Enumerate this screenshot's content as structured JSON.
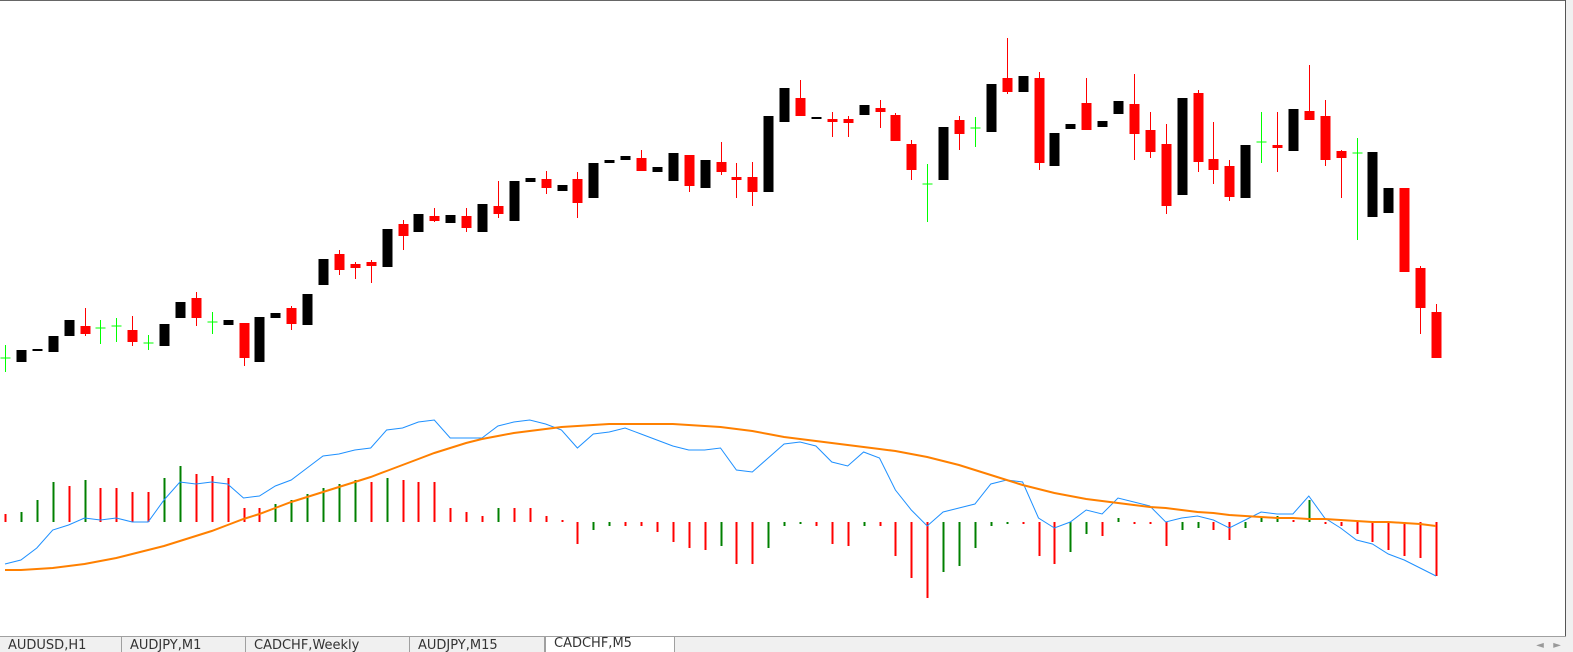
{
  "chart_data": [
    {
      "type": "candlestick",
      "ylim": [
        0,
        380
      ],
      "up_color": "#000000",
      "down_color": "#ff0000",
      "doji_color": "#00ff00",
      "open": [
        22,
        18,
        29,
        28,
        44,
        54,
        52,
        54,
        50,
        37,
        34,
        62,
        82,
        58,
        55,
        57,
        18,
        62,
        72,
        55,
        95,
        126,
        116,
        118,
        113,
        156,
        148,
        164,
        157,
        164,
        148,
        174,
        159,
        198,
        201,
        189,
        201,
        182,
        217,
        220,
        222,
        208,
        199,
        225,
        192,
        218,
        203,
        203,
        188,
        258,
        282,
        261,
        261,
        261,
        265,
        272,
        265,
        236,
        196,
        200,
        260,
        252,
        248,
        302,
        288,
        302,
        214,
        251,
        277,
        253,
        266,
        276,
        250,
        236,
        185,
        287,
        221,
        214,
        182,
        238,
        235,
        229,
        269,
        264,
        229,
        227,
        163,
        167,
        192,
        112,
        68
      ],
      "high": [
        35,
        30,
        31,
        44,
        60,
        72,
        60,
        62,
        64,
        45,
        56,
        78,
        88,
        68,
        60,
        57,
        63,
        67,
        74,
        86,
        121,
        130,
        118,
        120,
        151,
        160,
        166,
        172,
        165,
        172,
        176,
        199,
        199,
        202,
        209,
        195,
        208,
        217,
        220,
        224,
        230,
        213,
        227,
        225,
        220,
        238,
        217,
        218,
        264,
        292,
        300,
        263,
        268,
        264,
        275,
        280,
        267,
        240,
        216,
        253,
        264,
        263,
        296,
        342,
        304,
        308,
        247,
        256,
        302,
        259,
        279,
        306,
        268,
        256,
        282,
        290,
        258,
        220,
        235,
        268,
        268,
        271,
        315,
        280,
        230,
        242,
        228,
        192,
        192,
        114,
        76
      ],
      "low": [
        8,
        18,
        29,
        28,
        44,
        44,
        36,
        38,
        34,
        30,
        34,
        62,
        54,
        46,
        55,
        14,
        18,
        62,
        50,
        55,
        95,
        105,
        101,
        97,
        113,
        130,
        148,
        158,
        157,
        148,
        148,
        162,
        159,
        198,
        186,
        189,
        162,
        182,
        217,
        220,
        209,
        208,
        199,
        188,
        192,
        205,
        182,
        174,
        188,
        258,
        264,
        261,
        243,
        243,
        265,
        252,
        239,
        200,
        158,
        200,
        230,
        233,
        248,
        286,
        288,
        210,
        214,
        251,
        250,
        253,
        266,
        220,
        222,
        166,
        185,
        208,
        196,
        179,
        182,
        217,
        208,
        229,
        260,
        214,
        182,
        140,
        163,
        167,
        108,
        46,
        22
      ],
      "close": [
        22,
        30,
        31,
        44,
        60,
        46,
        52,
        54,
        38,
        37,
        56,
        78,
        62,
        58,
        60,
        22,
        63,
        67,
        56,
        86,
        121,
        110,
        112,
        114,
        151,
        144,
        166,
        159,
        165,
        152,
        176,
        166,
        199,
        202,
        192,
        195,
        177,
        217,
        220,
        224,
        209,
        213,
        227,
        194,
        220,
        208,
        200,
        188,
        264,
        292,
        264,
        263,
        258,
        257,
        275,
        268,
        239,
        210,
        196,
        253,
        246,
        252,
        296,
        288,
        304,
        217,
        247,
        256,
        250,
        259,
        279,
        246,
        228,
        174,
        282,
        218,
        210,
        183,
        235,
        238,
        232,
        271,
        260,
        220,
        222,
        227,
        228,
        192,
        108,
        72,
        22
      ]
    },
    {
      "type": "histogram",
      "ylim": [
        -118,
        122
      ],
      "up_color": "#008000",
      "down_color": "#ff0000",
      "values": [
        8,
        10,
        22,
        40,
        36,
        42,
        34,
        34,
        30,
        30,
        44,
        56,
        48,
        46,
        44,
        14,
        14,
        18,
        22,
        28,
        34,
        38,
        42,
        40,
        44,
        42,
        40,
        40,
        14,
        10,
        6,
        14,
        14,
        14,
        6,
        2,
        -22,
        -8,
        -4,
        -4,
        -4,
        -10,
        -20,
        -26,
        -28,
        -24,
        -42,
        -42,
        -26,
        -4,
        -2,
        -4,
        -22,
        -24,
        -4,
        -4,
        -34,
        -56,
        -76,
        -50,
        -44,
        -26,
        -4,
        -2,
        -2,
        -34,
        -42,
        -30,
        -12,
        -14,
        4,
        -2,
        -2,
        -24,
        -8,
        -6,
        -8,
        -18,
        -6,
        4,
        6,
        2,
        22,
        -2,
        -4,
        -12,
        -20,
        -28,
        -34,
        -36,
        -54
      ],
      "lines": [
        {
          "color": "#1e90ff",
          "values": [
            -42,
            -38,
            -26,
            -8,
            -3,
            4,
            2,
            4,
            0,
            0,
            22,
            40,
            38,
            40,
            38,
            24,
            26,
            36,
            42,
            54,
            66,
            68,
            72,
            74,
            92,
            94,
            100,
            102,
            84,
            84,
            84,
            96,
            100,
            102,
            98,
            92,
            74,
            88,
            90,
            94,
            88,
            82,
            76,
            72,
            72,
            74,
            52,
            50,
            64,
            78,
            80,
            76,
            60,
            56,
            70,
            64,
            32,
            12,
            -4,
            10,
            14,
            18,
            38,
            42,
            40,
            4,
            -6,
            0,
            12,
            8,
            24,
            20,
            16,
            0,
            4,
            6,
            2,
            -6,
            2,
            10,
            8,
            8,
            26,
            4,
            -6,
            -18,
            -22,
            -32,
            -38,
            -46,
            -54
          ]
        },
        {
          "color": "#ff8000",
          "values": [
            -48,
            -48,
            -47,
            -46,
            -44,
            -42,
            -39,
            -36,
            -32,
            -28,
            -24,
            -19,
            -14,
            -9,
            -3,
            3,
            8,
            14,
            20,
            25,
            30,
            35,
            40,
            45,
            51,
            57,
            63,
            69,
            74,
            79,
            83,
            86,
            89,
            91,
            93,
            95,
            96,
            97,
            98,
            98,
            98,
            98,
            98,
            97,
            96,
            95,
            93,
            91,
            88,
            85,
            83,
            81,
            79,
            77,
            75,
            73,
            71,
            68,
            65,
            61,
            57,
            52,
            47,
            42,
            37,
            33,
            29,
            26,
            23,
            21,
            19,
            17,
            15,
            14,
            12,
            10,
            9,
            7,
            6,
            5,
            4,
            4,
            3,
            3,
            2,
            1,
            0,
            0,
            -1,
            -2,
            -4
          ]
        }
      ]
    }
  ],
  "tabs": [
    "AUDUSD,H1",
    "AUDJPY,M1",
    "CADCHF,Weekly",
    "AUDJPY,M15",
    "CADCHF,M5"
  ]
}
